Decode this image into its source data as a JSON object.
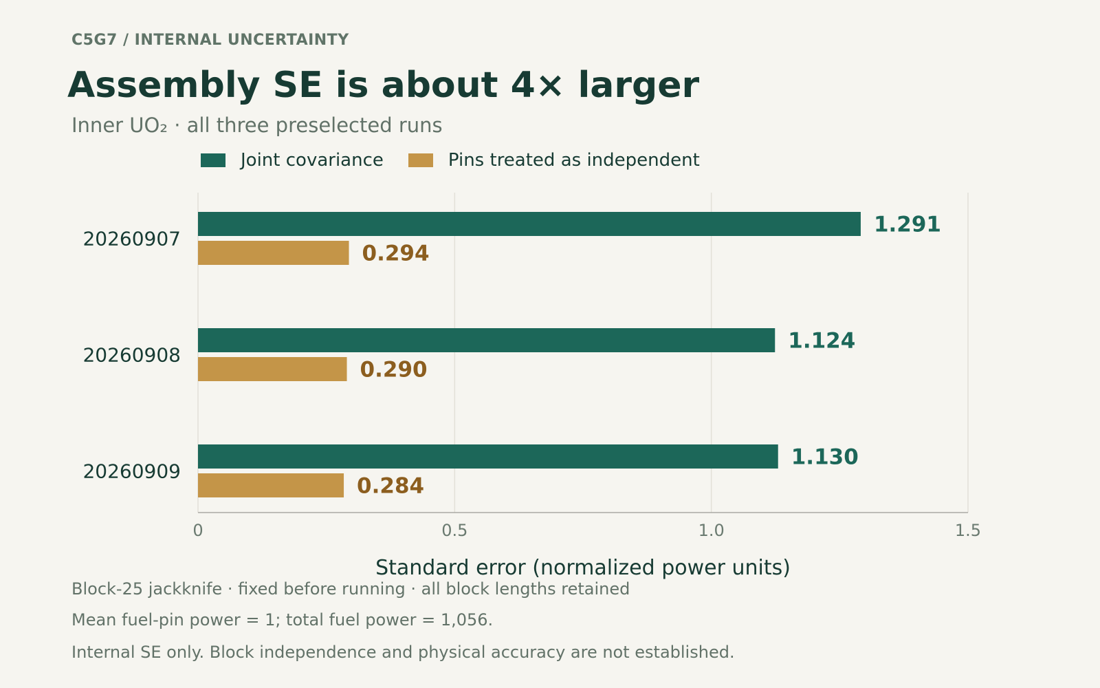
{
  "header": {
    "eyebrow": "C5G7 / INTERNAL UNCERTAINTY",
    "title": "Assembly SE is about 4× larger",
    "subtitle": "Inner UO₂ · all three preselected runs"
  },
  "colors": {
    "joint": "#1c6759",
    "independent": "#c49548",
    "independent_label": "#8c5e1f",
    "grid": "#e2e0d8",
    "axis": "#aaaaa4",
    "tick_text": "#6a7a70",
    "category_text": "#173b33"
  },
  "chart_data": {
    "type": "bar",
    "orientation": "horizontal",
    "categories": [
      "20260907",
      "20260908",
      "20260909"
    ],
    "series": [
      {
        "name": "Joint covariance",
        "values": [
          1.291,
          1.124,
          1.13
        ],
        "labels": [
          "1.291",
          "1.124",
          "1.130"
        ]
      },
      {
        "name": "Pins treated as independent",
        "values": [
          0.294,
          0.29,
          0.284
        ],
        "labels": [
          "0.294",
          "0.290",
          "0.284"
        ]
      }
    ],
    "xlim": [
      0,
      1.5
    ],
    "xticks": [
      0,
      0.5,
      1.0,
      1.5
    ],
    "xtick_labels": [
      "0",
      "0.5",
      "1.0",
      "1.5"
    ],
    "xlabel": "Standard error (normalized power units)",
    "grid": "vertical",
    "legend": "top-left"
  },
  "footnotes": [
    "Block-25 jackknife · fixed before running · all block lengths retained",
    "Mean fuel-pin power = 1; total fuel power = 1,056.",
    "Internal SE only. Block independence and physical accuracy are not established."
  ]
}
